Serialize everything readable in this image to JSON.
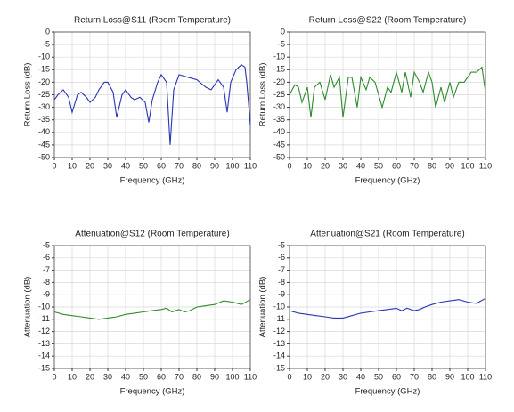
{
  "chart_data": [
    {
      "type": "line",
      "title": "Return Loss@S11 (Room Temperature)",
      "x_label": "Frequency (GHz)",
      "y_label": "Return Loss (dB)",
      "xlim": [
        0,
        110
      ],
      "xticks": [
        0,
        10,
        20,
        30,
        40,
        50,
        60,
        70,
        80,
        90,
        100,
        110
      ],
      "ylim": [
        -50,
        0
      ],
      "yticks": [
        0,
        -5,
        -10,
        -15,
        -20,
        -25,
        -30,
        -35,
        -40,
        -45,
        -50
      ],
      "grid": true,
      "color": "#2a35b4",
      "x": [
        0,
        2,
        5,
        8,
        10,
        13,
        15,
        18,
        20,
        23,
        25,
        28,
        30,
        33,
        35,
        38,
        40,
        43,
        45,
        48,
        51,
        53,
        55,
        58,
        60,
        63,
        65,
        67,
        70,
        75,
        80,
        85,
        88,
        90,
        92,
        95,
        97,
        99,
        102,
        105,
        107,
        108,
        110
      ],
      "values": [
        -27,
        -25,
        -23,
        -26,
        -32,
        -25,
        -24,
        -26,
        -28,
        -26,
        -23,
        -20,
        -20,
        -24,
        -34,
        -25,
        -23,
        -26,
        -27,
        -26,
        -28,
        -36,
        -27,
        -20,
        -17,
        -20,
        -45,
        -23,
        -17,
        -18,
        -19,
        -22,
        -23,
        -21,
        -19,
        -22,
        -32,
        -20,
        -15,
        -13,
        -14,
        -20,
        -37
      ]
    },
    {
      "type": "line",
      "title": "Return Loss@S22 (Room Temperature)",
      "x_label": "Frequency (GHz)",
      "y_label": "Return Loss (dB)",
      "xlim": [
        0,
        110
      ],
      "xticks": [
        0,
        10,
        20,
        30,
        40,
        50,
        60,
        70,
        80,
        90,
        100,
        110
      ],
      "ylim": [
        -50,
        0
      ],
      "yticks": [
        0,
        -5,
        -10,
        -15,
        -20,
        -25,
        -30,
        -35,
        -40,
        -45,
        -50
      ],
      "grid": true,
      "color": "#2e8b2e",
      "x": [
        0,
        3,
        5,
        7,
        10,
        12,
        14,
        17,
        20,
        23,
        25,
        28,
        30,
        33,
        35,
        38,
        40,
        43,
        45,
        48,
        52,
        55,
        57,
        60,
        63,
        65,
        68,
        70,
        73,
        75,
        78,
        80,
        82,
        85,
        87,
        90,
        92,
        95,
        98,
        102,
        105,
        108,
        110
      ],
      "values": [
        -25,
        -21,
        -22,
        -28,
        -22,
        -34,
        -22,
        -20,
        -27,
        -17,
        -22,
        -18,
        -34,
        -18,
        -18,
        -30,
        -18,
        -23,
        -18,
        -20,
        -30,
        -22,
        -24,
        -16,
        -24,
        -16,
        -26,
        -16,
        -20,
        -24,
        -16,
        -20,
        -30,
        -22,
        -28,
        -20,
        -26,
        -20,
        -20,
        -16,
        -16,
        -14,
        -24
      ]
    },
    {
      "type": "line",
      "title": "Attenuation@S12 (Room Temperature)",
      "x_label": "Frequency (GHz)",
      "y_label": "Attenuation (dB)",
      "xlim": [
        0,
        110
      ],
      "xticks": [
        0,
        10,
        20,
        30,
        40,
        50,
        60,
        70,
        80,
        90,
        100,
        110
      ],
      "ylim": [
        -15,
        -5
      ],
      "yticks": [
        -5,
        -6,
        -7,
        -8,
        -9,
        -10,
        -11,
        -12,
        -13,
        -14,
        -15
      ],
      "grid": true,
      "color": "#2e8b2e",
      "x": [
        0,
        5,
        10,
        15,
        20,
        25,
        30,
        35,
        40,
        45,
        50,
        55,
        60,
        63,
        66,
        70,
        73,
        76,
        80,
        85,
        90,
        95,
        100,
        105,
        110
      ],
      "values": [
        -10.4,
        -10.6,
        -10.7,
        -10.8,
        -10.9,
        -11.0,
        -10.9,
        -10.8,
        -10.6,
        -10.5,
        -10.4,
        -10.3,
        -10.2,
        -10.1,
        -10.4,
        -10.2,
        -10.4,
        -10.3,
        -10.0,
        -9.9,
        -9.8,
        -9.5,
        -9.6,
        -9.8,
        -9.4
      ]
    },
    {
      "type": "line",
      "title": "Attenuation@S21 (Room Temperature)",
      "x_label": "Frequency (GHz)",
      "y_label": "Attenuation (dB)",
      "xlim": [
        0,
        110
      ],
      "xticks": [
        0,
        10,
        20,
        30,
        40,
        50,
        60,
        70,
        80,
        90,
        100,
        110
      ],
      "ylim": [
        -15,
        -5
      ],
      "yticks": [
        -5,
        -6,
        -7,
        -8,
        -9,
        -10,
        -11,
        -12,
        -13,
        -14,
        -15
      ],
      "grid": true,
      "color": "#2a35b4",
      "x": [
        0,
        5,
        10,
        15,
        20,
        25,
        30,
        35,
        40,
        45,
        50,
        55,
        60,
        63,
        66,
        70,
        73,
        76,
        80,
        85,
        90,
        95,
        100,
        105,
        110
      ],
      "values": [
        -10.3,
        -10.5,
        -10.6,
        -10.7,
        -10.8,
        -10.9,
        -10.9,
        -10.7,
        -10.5,
        -10.4,
        -10.3,
        -10.2,
        -10.1,
        -10.3,
        -10.1,
        -10.3,
        -10.2,
        -10.0,
        -9.8,
        -9.6,
        -9.5,
        -9.4,
        -9.6,
        -9.7,
        -9.3
      ]
    }
  ]
}
